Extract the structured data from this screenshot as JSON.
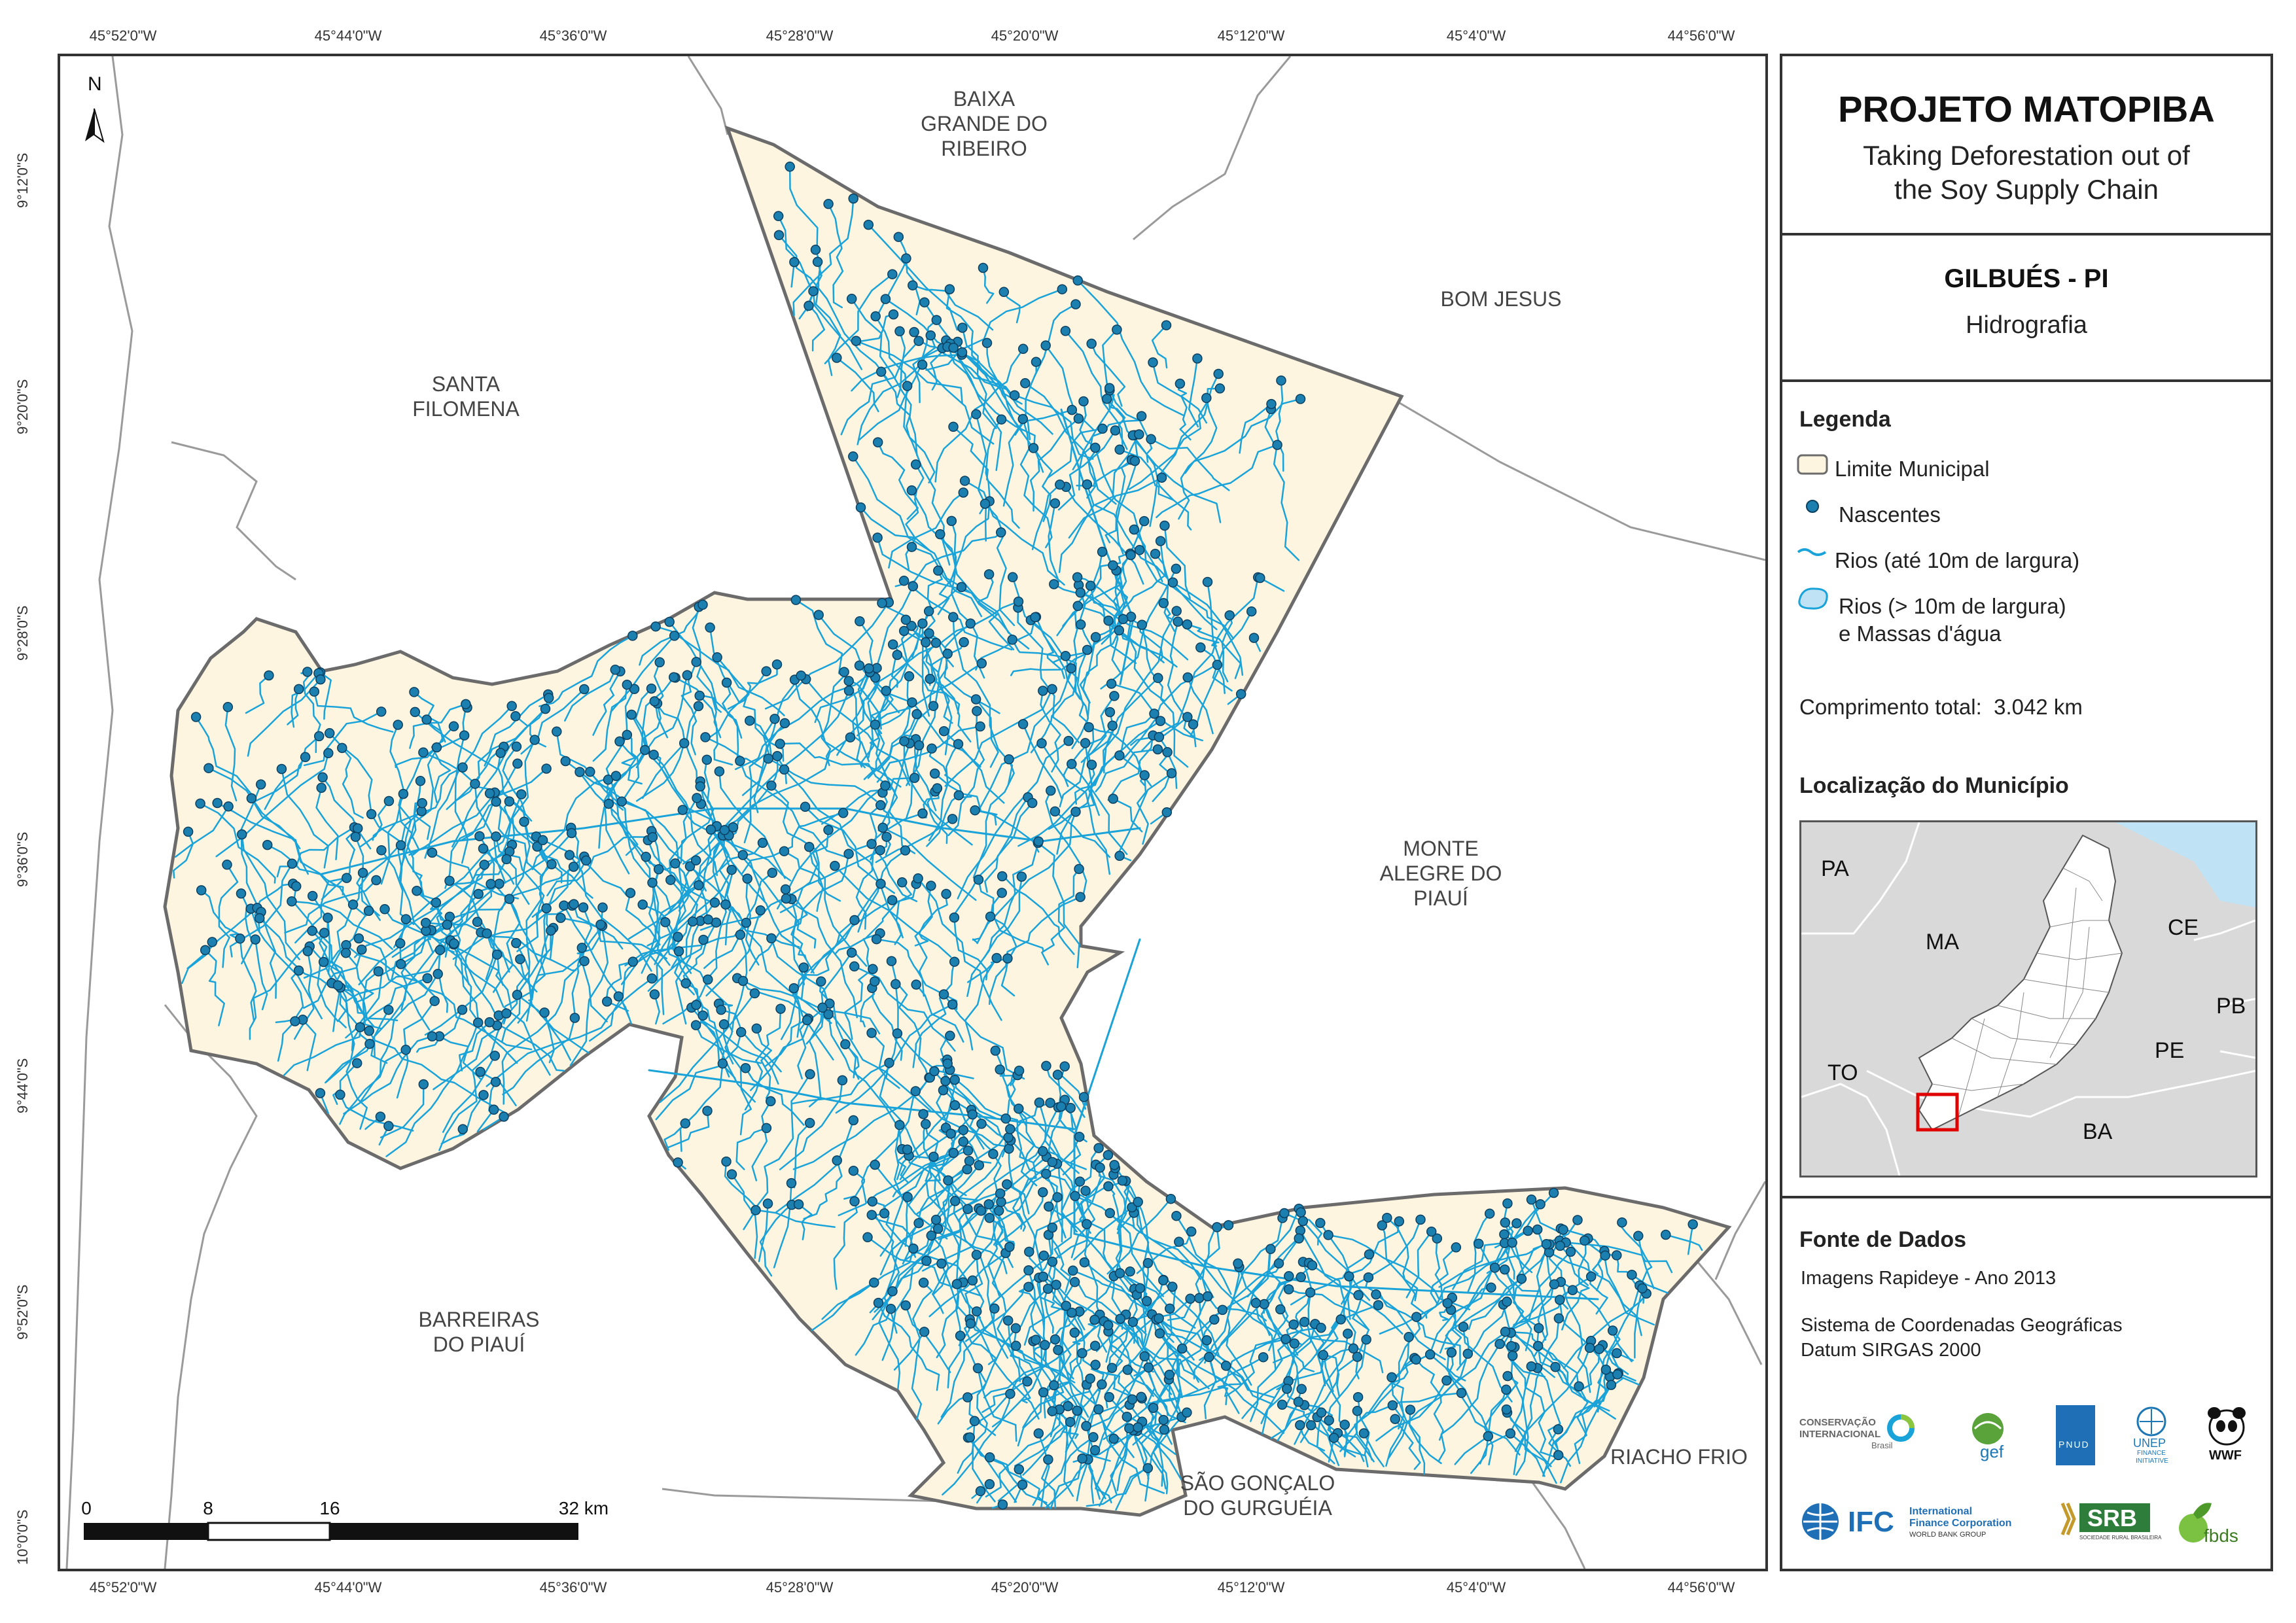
{
  "ticks": {
    "longitudes": [
      "45°52'0\"W",
      "45°44'0\"W",
      "45°36'0\"W",
      "45°28'0\"W",
      "45°20'0\"W",
      "45°12'0\"W",
      "45°4'0\"W",
      "44°56'0\"W"
    ],
    "latitudes": [
      "9°12'0\"S",
      "9°20'0\"S",
      "9°28'0\"S",
      "9°36'0\"S",
      "9°44'0\"S",
      "9°52'0\"S",
      "10°0'0\"S"
    ]
  },
  "north_arrow": "N",
  "neighbors": {
    "baixa_grande": [
      "BAIXA",
      "GRANDE DO",
      "RIBEIRO"
    ],
    "bom_jesus": [
      "BOM JESUS"
    ],
    "santa_filomena": [
      "SANTA",
      "FILOMENA"
    ],
    "monte_alegre": [
      "MONTE",
      "ALEGRE DO",
      "PIAUÍ"
    ],
    "barreiras": [
      "BARREIRAS",
      "DO PIAUÍ"
    ],
    "sao_goncalo": [
      "SÃO GONÇALO",
      "DO GURGUÉIA"
    ],
    "riacho_frio": [
      "RIACHO FRIO"
    ]
  },
  "scale_bar": {
    "labels": [
      "0",
      "8",
      "16",
      "32 km"
    ]
  },
  "panel": {
    "project_title": "PROJETO MATOPIBA",
    "subtitle_line1": "Taking Deforestation out of",
    "subtitle_line2": "the Soy Supply Chain",
    "municipality": "GILBUÉS - PI",
    "theme": "Hidrografia",
    "legend_title": "Legenda",
    "legend_items": [
      "Limite Municipal",
      "Nascentes",
      "Rios (até 10m de largura)",
      "Rios (> 10m de largura)",
      "e Massas d'água"
    ],
    "total_length_label": "Comprimento total:",
    "total_length_value": "3.042 km",
    "location_title": "Localização do Município",
    "states": [
      "PA",
      "MA",
      "CE",
      "PB",
      "TO",
      "PE",
      "BA"
    ],
    "sources_title": "Fonte de Dados",
    "sources": [
      "Imagens Rapideye - Ano 2013",
      "Sistema de Coordenadas Geográficas",
      "Datum SIRGAS 2000"
    ],
    "logos": {
      "ci_line1": "CONSERVAÇÃO",
      "ci_line2": "INTERNACIONAL",
      "ci_line3": "Brasil",
      "gef": "gef",
      "pnud": "PNUD",
      "unep": "UNEP",
      "unep_sub1": "FINANCE",
      "unep_sub2": "INITIATIVE",
      "wwf": "WWF",
      "ifc": "IFC",
      "ifc_line1": "International",
      "ifc_line2": "Finance Corporation",
      "ifc_line3": "WORLD BANK GROUP",
      "srb": "SRB",
      "srb_sub": "SOCIEDADE RURAL BRASILEIRA",
      "fbds": "fbds"
    }
  },
  "colors": {
    "municipality_fill": "#fdf5e0",
    "boundary": "#6b6b6b",
    "river": "#1aa3d9",
    "spring": "#1b7fb0",
    "spring_stroke": "#0d3f5f",
    "neighbor_lines": "#9a9a9a",
    "inset_land": "#d9d9d9",
    "inset_sea": "#bfe3f5",
    "highlight": "#e00000"
  }
}
